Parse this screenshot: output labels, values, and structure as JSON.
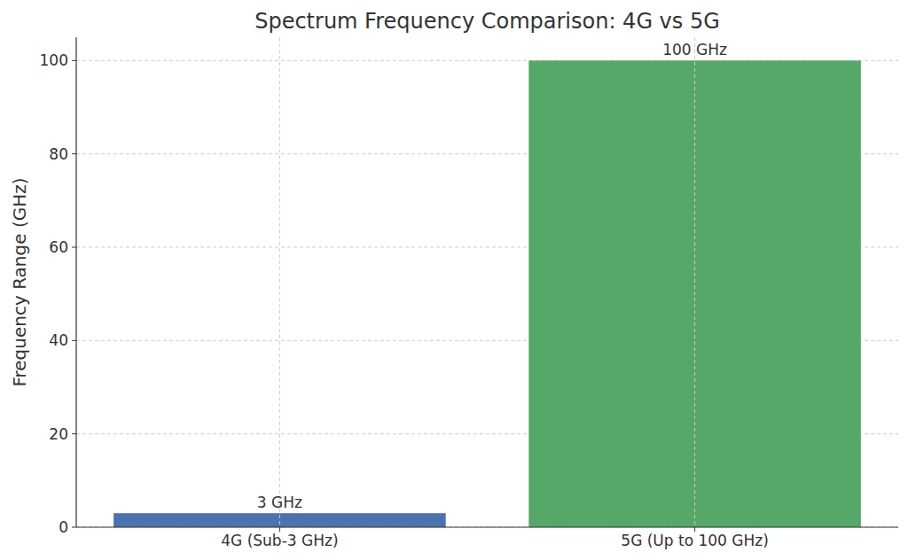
{
  "chart_data": {
    "type": "bar",
    "title": "Spectrum Frequency Comparison: 4G vs 5G",
    "y_label": "Frequency Range (GHz)",
    "categories": [
      "4G (Sub-3 GHz)",
      "5G (Up to 100 GHz)"
    ],
    "values": [
      3,
      100
    ],
    "value_labels": [
      "3 GHz",
      "100 GHz"
    ],
    "colors": [
      "#4c72b0",
      "#55a868"
    ],
    "ylim": [
      0,
      105
    ],
    "yticks": [
      0,
      20,
      40,
      60,
      80,
      100
    ],
    "grid": true,
    "data_labels": true
  }
}
